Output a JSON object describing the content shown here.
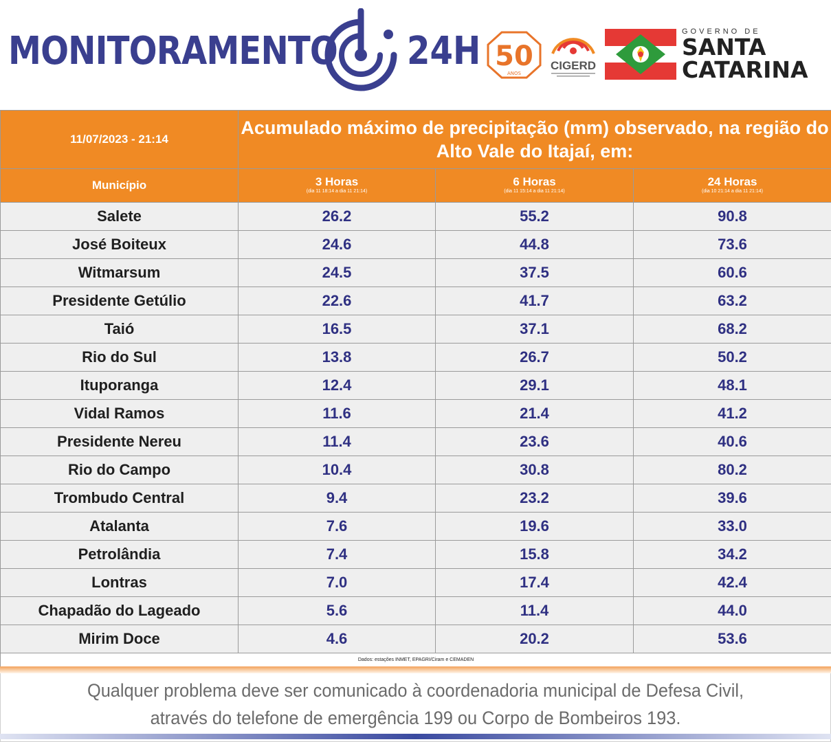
{
  "header": {
    "brand_left": "MONITORAMENTO",
    "brand_right": "24H",
    "badge_50": "50",
    "badge_50_sub": "ANOS",
    "cigerd": "CIGERD",
    "gov_top": "GOVERNO DE",
    "gov_line1": "SANTA",
    "gov_line2": "CATARINA",
    "colors": {
      "brand": "#3a3f8f",
      "accent": "#f08a24",
      "flag_red": "#e53935",
      "flag_green": "#2e9b3c"
    }
  },
  "table": {
    "date": "11/07/2023 - 21:14",
    "title": "Acumulado máximo de precipitação (mm) observado, na região do Alto Vale do Itajaí, em:",
    "columns": {
      "municipio": "Município",
      "h3": "3 Horas",
      "h3_sub": "(dia 11 18:14 a dia 11 21:14)",
      "h6": "6 Horas",
      "h6_sub": "(dia 11 15:14 a dia 11 21:14)",
      "h24": "24 Horas",
      "h24_sub": "(dia 10 21:14 a dia 11 21:14)"
    },
    "rows": [
      {
        "name": "Salete",
        "h3": "26.2",
        "h6": "55.2",
        "h24": "90.8"
      },
      {
        "name": "José Boiteux",
        "h3": "24.6",
        "h6": "44.8",
        "h24": "73.6"
      },
      {
        "name": "Witmarsum",
        "h3": "24.5",
        "h6": "37.5",
        "h24": "60.6"
      },
      {
        "name": "Presidente Getúlio",
        "h3": "22.6",
        "h6": "41.7",
        "h24": "63.2"
      },
      {
        "name": "Taió",
        "h3": "16.5",
        "h6": "37.1",
        "h24": "68.2"
      },
      {
        "name": "Rio do Sul",
        "h3": "13.8",
        "h6": "26.7",
        "h24": "50.2"
      },
      {
        "name": "Ituporanga",
        "h3": "12.4",
        "h6": "29.1",
        "h24": "48.1"
      },
      {
        "name": "Vidal Ramos",
        "h3": "11.6",
        "h6": "21.4",
        "h24": "41.2"
      },
      {
        "name": "Presidente Nereu",
        "h3": "11.4",
        "h6": "23.6",
        "h24": "40.6"
      },
      {
        "name": "Rio do Campo",
        "h3": "10.4",
        "h6": "30.8",
        "h24": "80.2"
      },
      {
        "name": "Trombudo Central",
        "h3": "9.4",
        "h6": "23.2",
        "h24": "39.6"
      },
      {
        "name": "Atalanta",
        "h3": "7.6",
        "h6": "19.6",
        "h24": "33.0"
      },
      {
        "name": "Petrolândia",
        "h3": "7.4",
        "h6": "15.8",
        "h24": "34.2"
      },
      {
        "name": "Lontras",
        "h3": "7.0",
        "h6": "17.4",
        "h24": "42.4"
      },
      {
        "name": "Chapadão do Lageado",
        "h3": "5.6",
        "h6": "11.4",
        "h24": "44.0"
      },
      {
        "name": "Mirim Doce",
        "h3": "4.6",
        "h6": "20.2",
        "h24": "53.6"
      }
    ],
    "source": "Dados: estações INMET, EPAGRI/Ciram e CEMADEN"
  },
  "footer": {
    "line1": "Qualquer problema deve ser comunicado à coordenadoria municipal de Defesa Civil,",
    "line2": "através do telefone de emergência 199 ou Corpo de Bombeiros 193."
  }
}
